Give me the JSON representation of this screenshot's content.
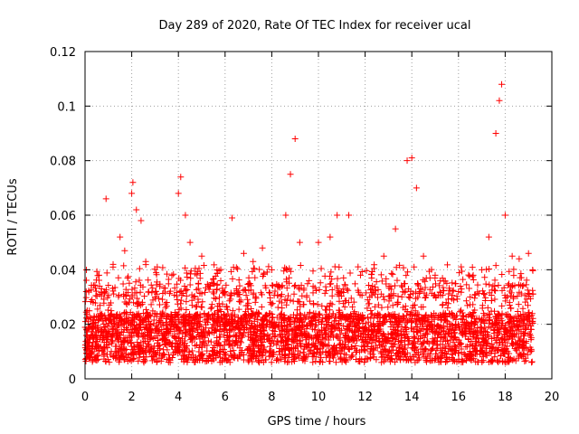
{
  "chart_data": {
    "type": "scatter",
    "title": "Day 289 of 2020, Rate Of TEC Index for receiver ucal",
    "xlabel": "GPS time / hours",
    "ylabel": "ROTI / TECUs",
    "xlim": [
      0,
      20
    ],
    "ylim": [
      0,
      0.12
    ],
    "xticks": [
      "0",
      "2",
      "4",
      "6",
      "8",
      "10",
      "12",
      "14",
      "16",
      "18",
      "20"
    ],
    "yticks": [
      "0",
      "0.02",
      "0.04",
      "0.06",
      "0.08",
      "0.1",
      "0.12"
    ],
    "grid": true,
    "marker": "+",
    "color": "#ff0000",
    "x_data_range": [
      0,
      19.2
    ],
    "series": [
      {
        "name": "",
        "points": [
          [
            0.05,
            0.032
          ],
          [
            0.3,
            0.029
          ],
          [
            0.6,
            0.038
          ],
          [
            0.9,
            0.066
          ],
          [
            1.2,
            0.041
          ],
          [
            1.5,
            0.052
          ],
          [
            1.7,
            0.047
          ],
          [
            2.0,
            0.068
          ],
          [
            2.05,
            0.072
          ],
          [
            2.2,
            0.062
          ],
          [
            2.4,
            0.058
          ],
          [
            2.6,
            0.043
          ],
          [
            3.0,
            0.03
          ],
          [
            3.5,
            0.028
          ],
          [
            4.0,
            0.068
          ],
          [
            4.1,
            0.074
          ],
          [
            4.3,
            0.06
          ],
          [
            4.5,
            0.05
          ],
          [
            5.0,
            0.045
          ],
          [
            5.5,
            0.035
          ],
          [
            6.0,
            0.032
          ],
          [
            6.3,
            0.059
          ],
          [
            6.8,
            0.046
          ],
          [
            7.2,
            0.043
          ],
          [
            7.6,
            0.048
          ],
          [
            8.0,
            0.04
          ],
          [
            8.6,
            0.06
          ],
          [
            8.8,
            0.075
          ],
          [
            9.0,
            0.088
          ],
          [
            9.2,
            0.05
          ],
          [
            9.6,
            0.036
          ],
          [
            10.0,
            0.05
          ],
          [
            10.5,
            0.052
          ],
          [
            10.8,
            0.06
          ],
          [
            11.3,
            0.06
          ],
          [
            11.8,
            0.038
          ],
          [
            12.2,
            0.03
          ],
          [
            12.8,
            0.045
          ],
          [
            13.3,
            0.055
          ],
          [
            13.8,
            0.08
          ],
          [
            14.0,
            0.081
          ],
          [
            14.2,
            0.07
          ],
          [
            14.5,
            0.045
          ],
          [
            15.0,
            0.038
          ],
          [
            15.5,
            0.035
          ],
          [
            16.0,
            0.032
          ],
          [
            16.5,
            0.03
          ],
          [
            17.0,
            0.04
          ],
          [
            17.3,
            0.052
          ],
          [
            17.6,
            0.09
          ],
          [
            17.75,
            0.102
          ],
          [
            17.85,
            0.108
          ],
          [
            18.0,
            0.06
          ],
          [
            18.3,
            0.045
          ],
          [
            18.6,
            0.044
          ],
          [
            19.0,
            0.046
          ]
        ]
      }
    ]
  }
}
